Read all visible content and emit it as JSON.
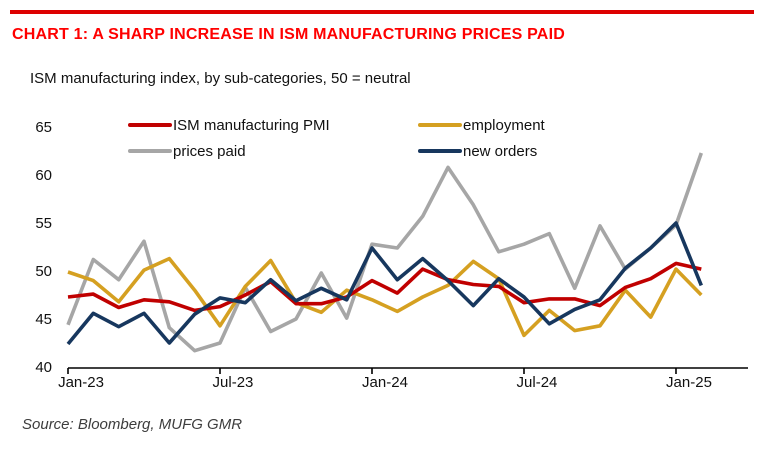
{
  "header": {
    "title": "CHART 1: A SHARP INCREASE IN ISM MANUFACTURING PRICES PAID",
    "title_color": "#FF0000",
    "accent_bar_color": "#DD0000"
  },
  "subtitle": "ISM manufacturing index, by sub-categories, 50 = neutral",
  "source": "Source: Bloomberg, MUFG GMR",
  "chart_data": {
    "type": "line",
    "title": "ISM manufacturing index, by sub-categories, 50 = neutral",
    "xlabel": "",
    "ylabel": "",
    "ylim": [
      40,
      65
    ],
    "yticks": [
      65,
      60,
      55,
      50,
      45,
      40
    ],
    "grid": false,
    "legend_position": "top",
    "x": [
      "Jan-23",
      "Feb-23",
      "Mar-23",
      "Apr-23",
      "May-23",
      "Jun-23",
      "Jul-23",
      "Aug-23",
      "Sep-23",
      "Oct-23",
      "Nov-23",
      "Dec-23",
      "Jan-24",
      "Feb-24",
      "Mar-24",
      "Apr-24",
      "May-24",
      "Jun-24",
      "Jul-24",
      "Aug-24",
      "Sep-24",
      "Oct-24",
      "Nov-24",
      "Dec-24",
      "Jan-25",
      "Feb-25"
    ],
    "x_tick_labels": [
      "Jan-23",
      "Jul-23",
      "Jan-24",
      "Jul-24",
      "Jan-25"
    ],
    "x_tick_indices": [
      0,
      6,
      12,
      18,
      24
    ],
    "series": [
      {
        "name": "ISM manufacturing PMI",
        "color": "#C00000",
        "values": [
          47.4,
          47.7,
          46.3,
          47.1,
          46.9,
          46.0,
          46.4,
          47.6,
          49.0,
          46.7,
          46.7,
          47.4,
          49.1,
          47.8,
          50.3,
          49.2,
          48.7,
          48.5,
          46.8,
          47.2,
          47.2,
          46.5,
          48.4,
          49.3,
          50.9,
          50.3
        ]
      },
      {
        "name": "employment",
        "color": "#D5A021",
        "values": [
          50.0,
          49.1,
          46.9,
          50.2,
          51.4,
          48.1,
          44.4,
          48.5,
          51.2,
          46.8,
          45.8,
          48.1,
          47.1,
          45.9,
          47.4,
          48.6,
          51.1,
          49.3,
          43.4,
          46.0,
          43.9,
          44.4,
          48.1,
          45.3,
          50.3,
          47.6
        ]
      },
      {
        "name": "prices paid",
        "color": "#A6A6A6",
        "values": [
          44.5,
          51.3,
          49.2,
          53.2,
          44.2,
          41.8,
          42.6,
          48.4,
          43.8,
          45.1,
          49.9,
          45.2,
          52.9,
          52.5,
          55.8,
          60.9,
          57.0,
          52.1,
          52.9,
          54.0,
          48.3,
          54.8,
          50.3,
          52.5,
          54.9,
          62.4
        ]
      },
      {
        "name": "new orders",
        "color": "#17375E",
        "values": [
          42.5,
          45.7,
          44.3,
          45.7,
          42.6,
          45.6,
          47.3,
          46.8,
          49.2,
          47.0,
          48.3,
          47.1,
          52.5,
          49.2,
          51.4,
          49.1,
          46.5,
          49.3,
          47.4,
          44.6,
          46.1,
          47.1,
          50.4,
          52.5,
          55.1,
          48.6
        ]
      }
    ]
  }
}
